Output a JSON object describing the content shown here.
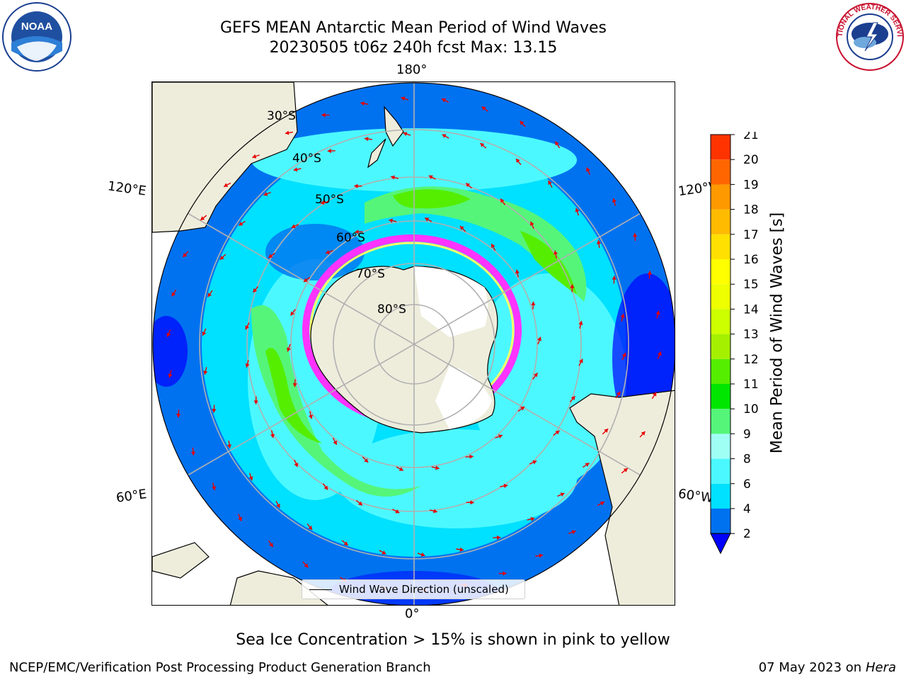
{
  "header": {
    "title_line1": "GEFS MEAN Antarctic Mean Period of Wind Waves",
    "title_line2": "20230505 t06z 240h fcst   Max: 13.15"
  },
  "logos": {
    "noaa_text": "NOAA",
    "noaa_ring_text": "NATIONAL OCEANIC AND ATMOSPHERIC ADMINISTRATION · U.S. DEPARTMENT OF COMMERCE",
    "nws_ring_text": "NATIONAL WEATHER SERVICE"
  },
  "map": {
    "projection": "south-polar-stereographic",
    "outer_lon_labels": {
      "top": "180°",
      "bottom": "0°",
      "left_upper": "120°E",
      "left_lower": "60°E",
      "right_upper": "120°W",
      "right_lower": "60°W"
    },
    "lat_labels": [
      "30°S",
      "40°S",
      "50°S",
      "60°S",
      "70°S",
      "80°S"
    ],
    "sea_ice_note_colors": [
      "#ff33ff",
      "#ffff66"
    ],
    "land_color": "#eeeddc",
    "arrow_color": "#e60000"
  },
  "legend": {
    "label": "Wind Wave Direction (unscaled)"
  },
  "colorbar": {
    "label": "Mean Period of Wind Waves [s]",
    "ticks": [
      "2",
      "4",
      "6",
      "8",
      "9",
      "10",
      "11",
      "12",
      "13",
      "14",
      "15",
      "16",
      "17",
      "18",
      "19",
      "20",
      "21"
    ],
    "colors": [
      "#0072f0",
      "#00e0ff",
      "#4cf8ff",
      "#a0fff5",
      "#55f57a",
      "#00e600",
      "#55ee00",
      "#a5f000",
      "#cdff00",
      "#eeff00",
      "#ffff00",
      "#ffe000",
      "#ffbb00",
      "#ff9900",
      "#ff6600",
      "#ff3300",
      "#ff0000"
    ],
    "under_color": "#0000ff"
  },
  "footer": {
    "note": "Sea Ice Concentration > 15% is shown in pink to yellow",
    "credit": "NCEP/EMC/Verification Post Processing Product Generation Branch",
    "date": "07 May 2023 on",
    "system": "Hera"
  }
}
